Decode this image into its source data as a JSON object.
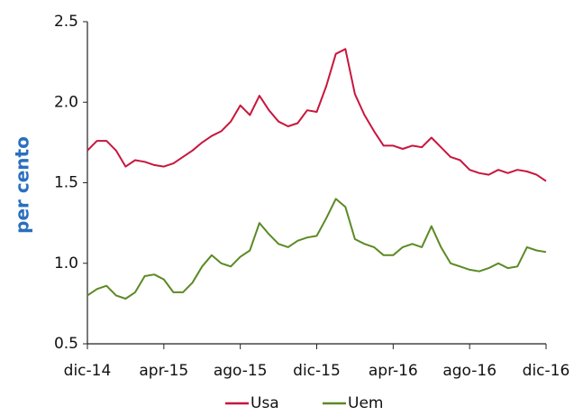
{
  "chart_data": {
    "type": "line",
    "ylabel": "per cento",
    "categories": [
      "dic-14",
      null,
      null,
      null,
      null,
      null,
      null,
      null,
      "apr-15",
      null,
      null,
      null,
      null,
      null,
      null,
      null,
      "ago-15",
      null,
      null,
      null,
      null,
      null,
      null,
      null,
      "dic-15",
      null,
      null,
      null,
      null,
      null,
      null,
      null,
      "apr-16",
      null,
      null,
      null,
      null,
      null,
      null,
      null,
      "ago-16",
      null,
      null,
      null,
      null,
      null,
      null,
      null,
      "dic-16"
    ],
    "series": [
      {
        "name": "Usa",
        "color": "#c8163c",
        "values": [
          1.7,
          1.76,
          1.76,
          1.7,
          1.6,
          1.64,
          1.63,
          1.61,
          1.6,
          1.62,
          1.66,
          1.7,
          1.75,
          1.79,
          1.82,
          1.88,
          1.98,
          1.92,
          2.04,
          1.95,
          1.88,
          1.85,
          1.87,
          1.95,
          1.94,
          2.1,
          2.3,
          2.33,
          2.05,
          1.92,
          1.82,
          1.73,
          1.73,
          1.71,
          1.73,
          1.72,
          1.78,
          1.72,
          1.66,
          1.64,
          1.58,
          1.56,
          1.55,
          1.58,
          1.56,
          1.58,
          1.57,
          1.55,
          1.51
        ]
      },
      {
        "name": "Uem",
        "color": "#5b8a24",
        "values": [
          0.8,
          0.84,
          0.86,
          0.8,
          0.78,
          0.82,
          0.92,
          0.93,
          0.9,
          0.82,
          0.82,
          0.88,
          0.98,
          1.05,
          1.0,
          0.98,
          1.04,
          1.08,
          1.25,
          1.18,
          1.12,
          1.1,
          1.14,
          1.16,
          1.17,
          1.28,
          1.4,
          1.35,
          1.15,
          1.12,
          1.1,
          1.05,
          1.05,
          1.1,
          1.12,
          1.1,
          1.23,
          1.1,
          1.0,
          0.98,
          0.96,
          0.95,
          0.97,
          1.0,
          0.97,
          0.98,
          1.1,
          1.08,
          1.07
        ]
      }
    ],
    "ylim": [
      0.5,
      2.5
    ],
    "yticks": [
      0.5,
      {
        "value": 1.0,
        "label": "1.0"
      },
      1.5,
      {
        "value": 2.0,
        "label": "2.0"
      },
      2.5
    ],
    "legend": "bottom"
  }
}
